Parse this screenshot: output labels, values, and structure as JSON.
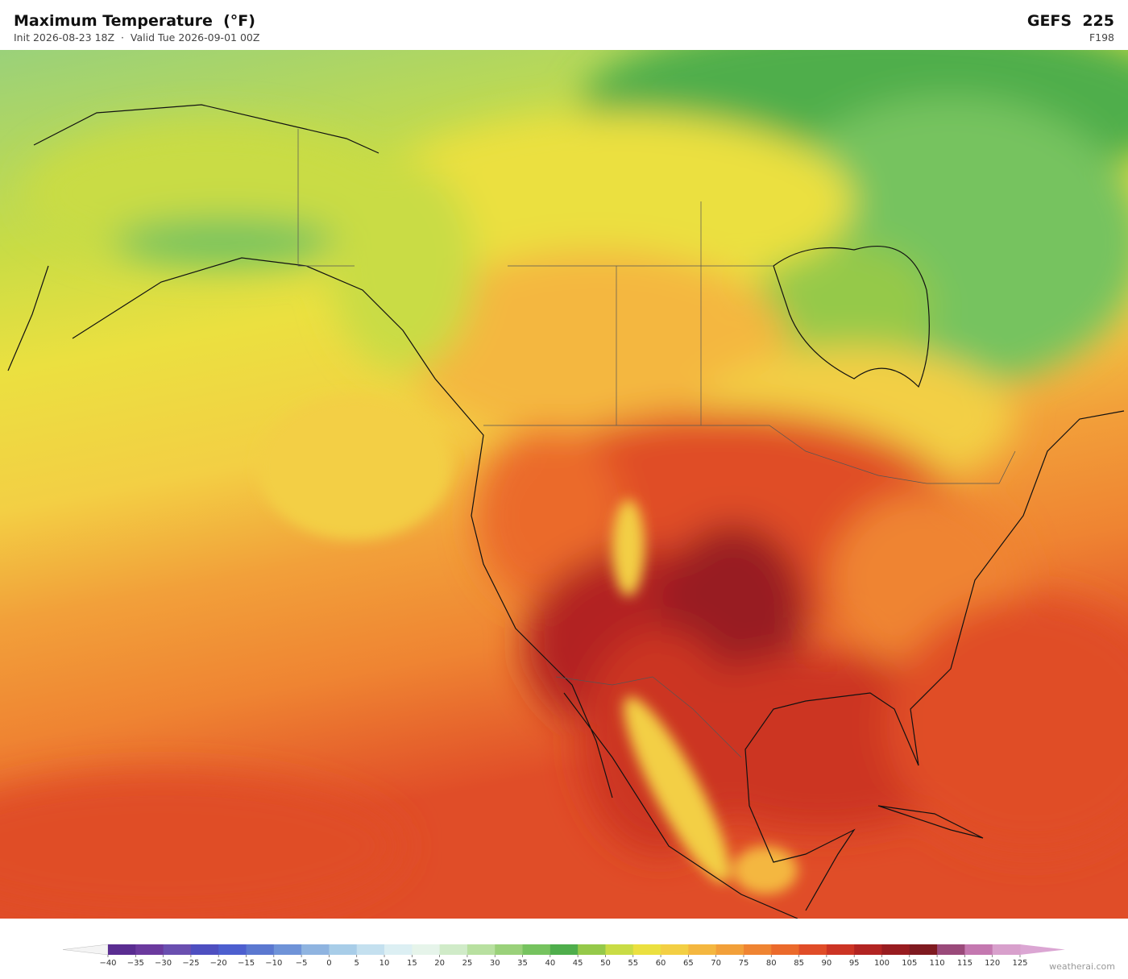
{
  "header": {
    "title": "Maximum Temperature  (°F)",
    "subtitle": "Init 2026-08-23 18Z  ·  Valid Tue 2026-09-01 00Z",
    "model": "GEFS  225",
    "forecast_hour": "F198"
  },
  "colorbar": {
    "ticks": [
      {
        "value": -40,
        "label": "−40"
      },
      {
        "value": -35,
        "label": "−35"
      },
      {
        "value": -30,
        "label": "−30"
      },
      {
        "value": -25,
        "label": "−25"
      },
      {
        "value": -20,
        "label": "−20"
      },
      {
        "value": -15,
        "label": "−15"
      },
      {
        "value": -10,
        "label": "−10"
      },
      {
        "value": -5,
        "label": "−5"
      },
      0,
      5,
      10,
      15,
      20,
      25,
      30,
      35,
      40,
      45,
      50,
      55,
      60,
      65,
      70,
      75,
      80,
      85,
      90,
      95,
      100,
      105,
      110,
      115,
      120,
      125
    ],
    "colors": [
      "#5a2d91",
      "#6b3a9e",
      "#6a4fb0",
      "#4e4fc0",
      "#4d5fcf",
      "#5b78d0",
      "#6f93d8",
      "#8fb4e0",
      "#a8cde8",
      "#c4e0ef",
      "#dceff3",
      "#e6f4ea",
      "#d0ebc8",
      "#b8e0a0",
      "#9ad17a",
      "#76c35f",
      "#4fae4c",
      "#95c94a",
      "#c9dc45",
      "#ebe040",
      "#f3cf44",
      "#f4b740",
      "#f2a03a",
      "#ef8432",
      "#eb6a2c",
      "#e04d28",
      "#cc3424",
      "#b22422",
      "#981c20",
      "#7f1a20",
      "#9a4a7a",
      "#c478b0",
      "#d8a0cc"
    ],
    "under_color": "#f4f4f4",
    "over_color": "#dba6d3"
  },
  "footer": {
    "watermark": "weatherai.com"
  }
}
